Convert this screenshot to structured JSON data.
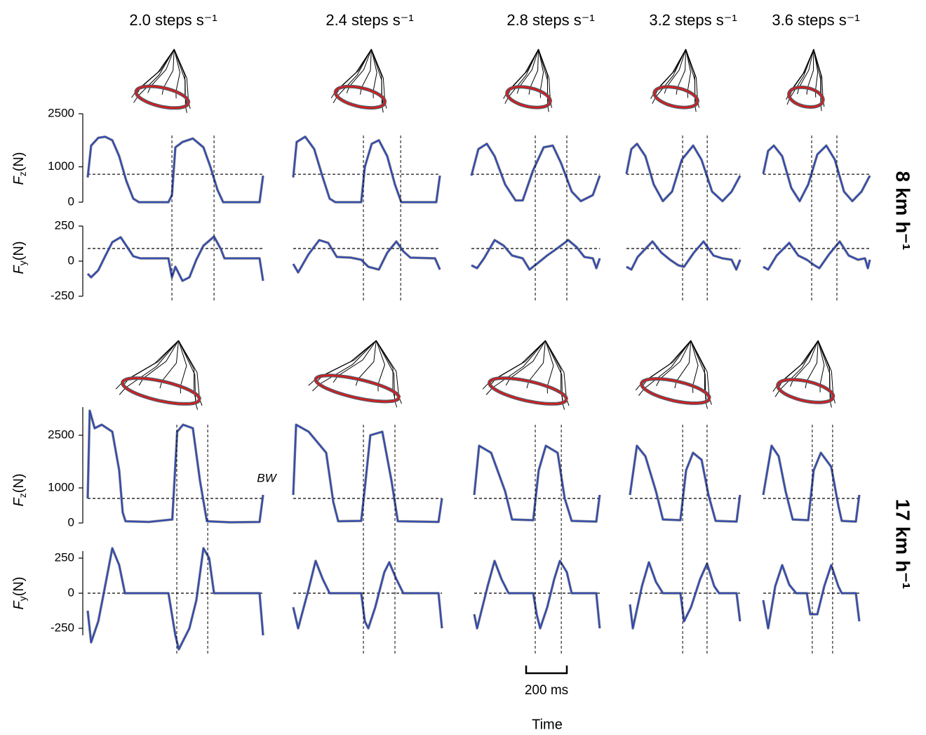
{
  "chart_data": {
    "type": "line",
    "column_titles": [
      "2.0 steps s⁻¹",
      "2.4 steps s⁻¹",
      "2.8 steps s⁻¹",
      "3.2 steps s⁻¹",
      "3.6 steps s⁻¹"
    ],
    "xlabel": "Time",
    "scale_bar": {
      "value": 200,
      "label": "200 ms"
    },
    "trace_color": "#2541c4",
    "rows": [
      {
        "label": "8 km h⁻¹",
        "events": [
          [
            414,
            621
          ],
          [
            345,
            528
          ],
          [
            314,
            469
          ],
          [
            276,
            397
          ],
          [
            238,
            362
          ]
        ],
        "fz": {
          "ylabel": [
            "F",
            "z",
            "(N)"
          ],
          "ylim": [
            0,
            2500
          ],
          "yticks": [
            0,
            1000,
            2500
          ],
          "bw": 790,
          "panels": [
            {
              "x": [
                0,
                17,
                52,
                86,
                121,
                155,
                190,
                224,
                252,
                397,
                414,
                431,
                466,
                517,
                569,
                603,
                638,
                666,
                845,
                862
              ],
              "values": [
                700,
                1600,
                1820,
                1850,
                1750,
                1300,
                600,
                100,
                0,
                0,
                200,
                1550,
                1700,
                1800,
                1550,
                1000,
                350,
                0,
                0,
                750
              ]
            },
            {
              "x": [
                0,
                17,
                59,
                103,
                145,
                179,
                207,
                334,
                352,
                386,
                421,
                462,
                500,
                531,
                703,
                721
              ],
              "values": [
                700,
                1700,
                1850,
                1500,
                700,
                100,
                0,
                0,
                1000,
                1650,
                1750,
                1300,
                500,
                0,
                0,
                750
              ]
            },
            {
              "x": [
                0,
                34,
                76,
                114,
                166,
                217,
                252,
                303,
                355,
                400,
                441,
                493,
                538,
                597,
                631
              ],
              "values": [
                750,
                1500,
                1650,
                1300,
                500,
                50,
                50,
                900,
                1550,
                1600,
                1100,
                300,
                30,
                200,
                750
              ]
            },
            {
              "x": [
                0,
                24,
                52,
                93,
                134,
                179,
                224,
                272,
                328,
                369,
                421,
                472,
                517,
                559
              ],
              "values": [
                800,
                1500,
                1650,
                1300,
                500,
                30,
                300,
                1200,
                1600,
                1200,
                300,
                30,
                300,
                750
              ]
            },
            {
              "x": [
                0,
                24,
                52,
                93,
                138,
                179,
                221,
                266,
                310,
                352,
                397,
                438,
                483,
                524
              ],
              "values": [
                800,
                1450,
                1600,
                1300,
                400,
                30,
                500,
                1350,
                1600,
                1200,
                300,
                30,
                300,
                750
              ]
            }
          ]
        },
        "fy": {
          "ylabel": [
            "F",
            "y",
            "(N)"
          ],
          "ylim": [
            -250,
            250
          ],
          "yticks": [
            -250,
            0,
            250
          ],
          "ref": 90,
          "panels": [
            {
              "x": [
                0,
                17,
                52,
                86,
                121,
                162,
                190,
                224,
                259,
                397,
                414,
                431,
                466,
                500,
                534,
                569,
                621,
                655,
                672,
                845,
                862
              ],
              "values": [
                -90,
                -115,
                -65,
                35,
                135,
                170,
                110,
                35,
                20,
                20,
                -115,
                -40,
                -140,
                -115,
                10,
                110,
                175,
                85,
                20,
                20,
                -140
              ]
            },
            {
              "x": [
                0,
                24,
                76,
                128,
                172,
                214,
                283,
                334,
                369,
                421,
                462,
                507,
                541,
                576,
                697,
                721
              ],
              "values": [
                -20,
                -80,
                50,
                150,
                130,
                30,
                25,
                10,
                -40,
                -60,
                60,
                140,
                70,
                25,
                20,
                -60
              ]
            },
            {
              "x": [
                0,
                28,
                62,
                114,
                159,
                200,
                252,
                286,
                321,
                372,
                421,
                476,
                517,
                555,
                597,
                614,
                631
              ],
              "values": [
                -30,
                -50,
                20,
                150,
                110,
                40,
                20,
                -60,
                -20,
                40,
                90,
                150,
                100,
                30,
                20,
                -50,
                20
              ]
            },
            {
              "x": [
                0,
                24,
                55,
                128,
                172,
                214,
                255,
                283,
                331,
                379,
                428,
                472,
                517,
                540,
                559
              ],
              "values": [
                -40,
                -60,
                30,
                140,
                60,
                10,
                -30,
                -40,
                60,
                140,
                40,
                20,
                10,
                -60,
                10
              ]
            },
            {
              "x": [
                0,
                24,
                66,
                128,
                172,
                214,
                252,
                276,
                324,
                376,
                420,
                466,
                500,
                514,
                524
              ],
              "values": [
                -40,
                -60,
                40,
                130,
                40,
                10,
                -30,
                -50,
                50,
                140,
                40,
                10,
                20,
                -50,
                10
              ]
            }
          ]
        }
      },
      {
        "label": "17 km h⁻¹",
        "events": [
          [
            438,
            590
          ],
          [
            345,
            500
          ],
          [
            300,
            428
          ],
          [
            259,
            379
          ],
          [
            241,
            341
          ]
        ],
        "fz": {
          "ylabel": [
            "F",
            "z",
            "(N)"
          ],
          "ylim": [
            0,
            3300
          ],
          "yticks": [
            0,
            1000,
            2500
          ],
          "bw": 700,
          "bw_label": "BW",
          "panels": [
            {
              "x": [
                0,
                10,
                34,
                69,
                121,
                155,
                172,
                186,
                300,
                416,
                440,
                469,
                517,
                552,
                586,
                700,
                845,
                862
              ],
              "values": [
                700,
                3200,
                2700,
                2800,
                2600,
                1500,
                300,
                50,
                30,
                100,
                2600,
                2800,
                2700,
                1200,
                50,
                20,
                30,
                800
              ]
            },
            {
              "x": [
                0,
                14,
                76,
                162,
                197,
                221,
                334,
                352,
                379,
                438,
                483,
                514,
                714,
                731
              ],
              "values": [
                800,
                2800,
                2600,
                2000,
                600,
                50,
                60,
                1000,
                2500,
                2600,
                1200,
                50,
                30,
                700
              ]
            },
            {
              "x": [
                0,
                24,
                83,
                152,
                186,
                290,
                317,
                352,
                410,
                445,
                479,
                600,
                617
              ],
              "values": [
                800,
                2200,
                2000,
                900,
                100,
                80,
                1500,
                2200,
                2000,
                700,
                60,
                40,
                800
              ]
            },
            {
              "x": [
                0,
                34,
                76,
                128,
                162,
                248,
                276,
                310,
                352,
                386,
                421,
                524,
                541
              ],
              "values": [
                800,
                2200,
                1900,
                900,
                100,
                80,
                1500,
                2000,
                1800,
                800,
                60,
                40,
                800
              ]
            },
            {
              "x": [
                0,
                41,
                76,
                110,
                145,
                221,
                248,
                283,
                334,
                369,
                386,
                455,
                472
              ],
              "values": [
                800,
                2200,
                1900,
                900,
                100,
                80,
                1500,
                2000,
                1600,
                500,
                60,
                40,
                800
              ]
            }
          ]
        },
        "fy": {
          "ylabel": [
            "F",
            "y",
            "(N)"
          ],
          "ylim": [
            -300,
            300
          ],
          "yticks": [
            -250,
            0,
            250
          ],
          "ref": 0,
          "panels": [
            {
              "x": [
                0,
                17,
                52,
                79,
                121,
                155,
                183,
                397,
                431,
                448,
                500,
                534,
                569,
                597,
                621,
                845,
                862
              ],
              "values": [
                -125,
                -350,
                -200,
                0,
                320,
                200,
                0,
                0,
                -300,
                -400,
                -250,
                -50,
                320,
                250,
                0,
                0,
                -300
              ]
            },
            {
              "x": [
                0,
                24,
                76,
                110,
                145,
                179,
                334,
                352,
                369,
                403,
                448,
                472,
                507,
                541,
                714,
                731
              ],
              "values": [
                -100,
                -250,
                30,
                230,
                100,
                0,
                0,
                -200,
                -250,
                -100,
                150,
                220,
                100,
                0,
                0,
                -250
              ]
            },
            {
              "x": [
                0,
                14,
                66,
                100,
                134,
                169,
                290,
                307,
                324,
                359,
                393,
                421,
                455,
                479,
                600,
                617
              ],
              "values": [
                -150,
                -250,
                50,
                230,
                100,
                0,
                0,
                -150,
                -250,
                -100,
                100,
                230,
                150,
                0,
                0,
                -250
              ]
            },
            {
              "x": [
                0,
                14,
                59,
                93,
                128,
                162,
                248,
                266,
                300,
                345,
                379,
                414,
                438,
                524,
                541
              ],
              "values": [
                -80,
                -250,
                50,
                220,
                80,
                0,
                0,
                -200,
                -100,
                100,
                210,
                50,
                0,
                0,
                -200
              ]
            },
            {
              "x": [
                0,
                24,
                59,
                93,
                128,
                162,
                214,
                231,
                266,
                300,
                334,
                369,
                386,
                455,
                472
              ],
              "values": [
                -50,
                -250,
                50,
                200,
                60,
                0,
                0,
                -150,
                -150,
                50,
                200,
                50,
                0,
                0,
                -200
              ]
            }
          ]
        }
      }
    ]
  }
}
